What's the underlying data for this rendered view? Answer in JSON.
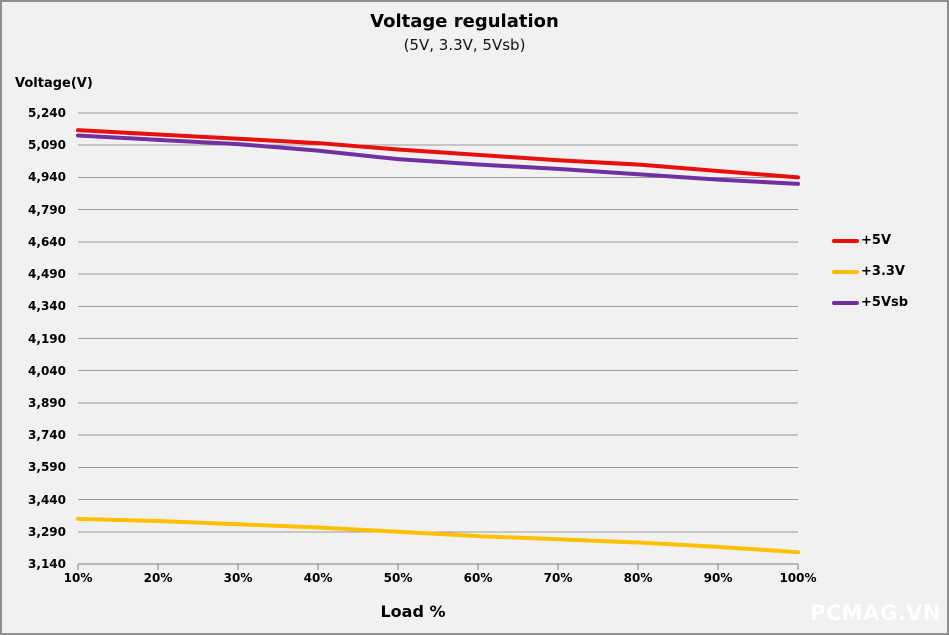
{
  "title": "Voltage regulation",
  "subtitle": "(5V, 3.3V, 5Vsb)",
  "watermark": "PCMAG.VN",
  "colors": {
    "background": "#f1f1f1",
    "border": "#8f8f8f",
    "grid": "#9c9c9c",
    "axis": "#7d7d7d",
    "series_5v": "#e8100c",
    "series_3_3v": "#ffc000",
    "series_5vsb": "#7030a0"
  },
  "chart_data": {
    "type": "line",
    "title": "Voltage regulation",
    "subtitle": "(5V, 3.3V, 5Vsb)",
    "xlabel": "Load %",
    "ylabel": "Voltage(V)",
    "grid": true,
    "legend_position": "right",
    "x": [
      10,
      20,
      30,
      40,
      50,
      60,
      70,
      80,
      90,
      100
    ],
    "x_tick_labels": [
      "10%",
      "20%",
      "30%",
      "40%",
      "50%",
      "60%",
      "70%",
      "80%",
      "90%",
      "100%"
    ],
    "ylim": [
      3140,
      5240
    ],
    "y_ticks": [
      3140,
      3290,
      3440,
      3590,
      3740,
      3890,
      4040,
      4190,
      4340,
      4490,
      4640,
      4790,
      4940,
      5090,
      5240
    ],
    "y_tick_labels": [
      "3,140",
      "3,290",
      "3,440",
      "3,590",
      "3,740",
      "3,890",
      "4,040",
      "4,190",
      "4,340",
      "4,490",
      "4,640",
      "4,790",
      "4,940",
      "5,090",
      "5,240"
    ],
    "series": [
      {
        "name": "+5V",
        "color": "#e8100c",
        "values": [
          5160,
          5140,
          5120,
          5100,
          5070,
          5045,
          5020,
          5000,
          4970,
          4940
        ]
      },
      {
        "name": "+3.3V",
        "color": "#ffc000",
        "values": [
          3350,
          3340,
          3325,
          3310,
          3290,
          3270,
          3255,
          3240,
          3220,
          3195
        ]
      },
      {
        "name": "+5Vsb",
        "color": "#7030a0",
        "values": [
          5135,
          5115,
          5095,
          5065,
          5025,
          5000,
          4980,
          4955,
          4930,
          4910
        ]
      }
    ]
  }
}
